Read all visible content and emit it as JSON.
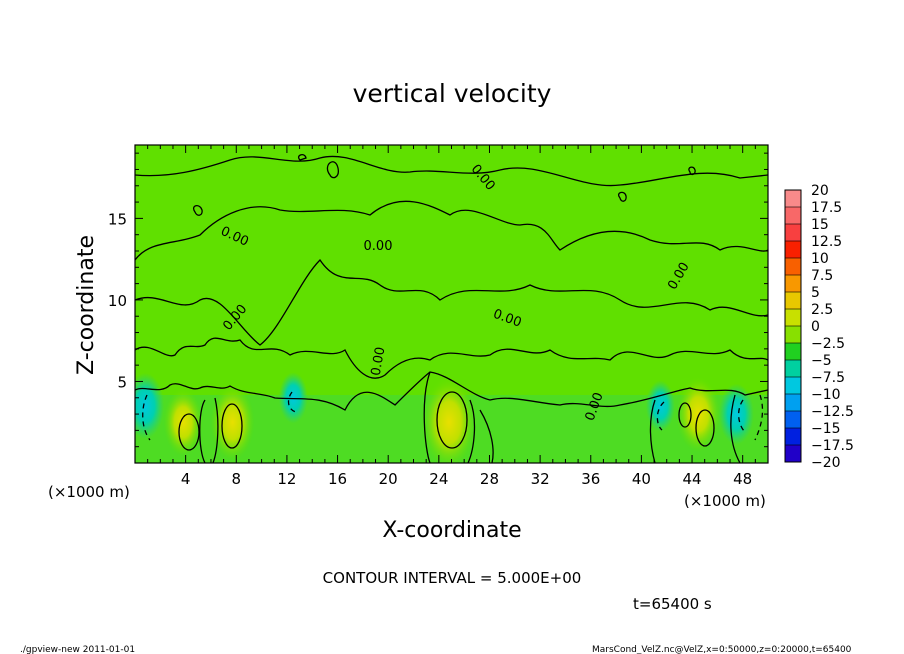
{
  "chart_data": {
    "type": "heatmap",
    "title": "vertical velocity",
    "xlabel": "X-coordinate",
    "ylabel": "Z-coordinate",
    "x_unit": "(×1000 m)",
    "y_unit": "(×1000 m)",
    "xlim": [
      0,
      50
    ],
    "ylim": [
      0,
      19.5
    ],
    "x_ticks": [
      4,
      8,
      12,
      16,
      20,
      24,
      28,
      32,
      36,
      40,
      44,
      48
    ],
    "y_ticks": [
      5,
      10,
      15
    ],
    "colorbar": {
      "levels": [
        20,
        17.5,
        15,
        12.5,
        10,
        7.5,
        5,
        2.5,
        0,
        -2.5,
        -5,
        -7.5,
        -10,
        -12.5,
        -15,
        -17.5,
        -20
      ],
      "colors": [
        "#f88a8a",
        "#f86868",
        "#f84040",
        "#f82000",
        "#f86000",
        "#f89800",
        "#e8c800",
        "#c8e000",
        "#88e000",
        "#20d020",
        "#00d0a0",
        "#00c8e0",
        "#00a0f0",
        "#0060f0",
        "#0020e0",
        "#2000c8",
        "#5000b8"
      ]
    },
    "contour_labels": [
      "0.00",
      "0.00",
      "0.00",
      "0.00",
      "0.00",
      "0.00",
      "0.00",
      "0.00"
    ],
    "contour_interval_text": "CONTOUR INTERVAL = 5.000E+00",
    "time_text": "t=65400 s",
    "updraft_cores": [
      {
        "x": 3.8,
        "z": 2.5,
        "w": 3
      },
      {
        "x": 7.7,
        "z": 2.5,
        "w": 4
      },
      {
        "x": 24.8,
        "z": 2.5,
        "w": 6
      },
      {
        "x": 44.5,
        "z": 3.0,
        "w": 4
      }
    ],
    "downdraft_cores": [
      {
        "x": 0.8,
        "z": 3.5,
        "w": -6
      },
      {
        "x": 12.5,
        "z": 4.0,
        "w": -3
      },
      {
        "x": 41.5,
        "z": 3.5,
        "w": -3
      },
      {
        "x": 47.5,
        "z": 3.0,
        "w": -5
      }
    ]
  },
  "footer": {
    "left": "./gpview-new   2011-01-01",
    "right": "MarsCond_VelZ.nc@VelZ,x=0:50000,z=0:20000,t=65400"
  }
}
